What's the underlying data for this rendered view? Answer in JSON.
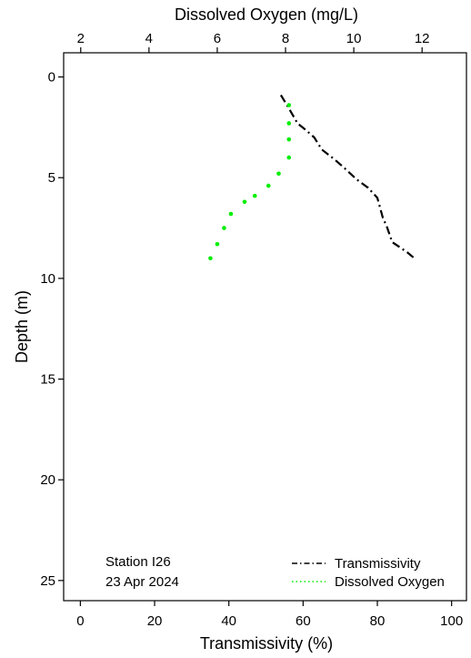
{
  "chart_data": {
    "type": "line",
    "x_bottom": {
      "label": "Transmissivity (%)",
      "range": [
        -4.5,
        104
      ],
      "ticks": [
        0,
        20,
        40,
        60,
        80,
        100
      ],
      "tick_labels": [
        "0",
        "20",
        "40",
        "60",
        "80",
        "100"
      ]
    },
    "x_top": {
      "label": "Dissolved Oxygen (mg/L)",
      "range": [
        1.5,
        13.3
      ],
      "ticks": [
        2,
        4,
        6,
        8,
        10,
        12
      ],
      "tick_labels": [
        "2",
        "4",
        "6",
        "8",
        "10",
        "12"
      ]
    },
    "y": {
      "label": "Depth (m)",
      "range": [
        26,
        -1.2
      ],
      "ticks": [
        0,
        5,
        10,
        15,
        20,
        25
      ],
      "tick_labels": [
        "0",
        "5",
        "10",
        "15",
        "20",
        "25"
      ],
      "inverted": true
    },
    "series": [
      {
        "name": "Transmissivity",
        "axis": "bottom",
        "style": "dashdot",
        "color": "#000000",
        "points": [
          [
            54.0,
            0.9
          ],
          [
            56.0,
            1.5
          ],
          [
            58.5,
            2.3
          ],
          [
            60.5,
            2.6
          ],
          [
            63.0,
            3.0
          ],
          [
            65.0,
            3.6
          ],
          [
            68.5,
            4.1
          ],
          [
            71.0,
            4.5
          ],
          [
            74.5,
            5.1
          ],
          [
            77.5,
            5.5
          ],
          [
            80.0,
            6.0
          ],
          [
            81.5,
            7.0
          ],
          [
            82.5,
            7.4
          ],
          [
            84.0,
            8.2
          ],
          [
            88.0,
            8.7
          ],
          [
            90.0,
            9.0
          ]
        ]
      },
      {
        "name": "Dissolved Oxygen",
        "axis": "top",
        "style": "dotted",
        "color": "#00ee00",
        "points": [
          [
            8.1,
            1.4
          ],
          [
            8.1,
            2.3
          ],
          [
            8.1,
            3.1
          ],
          [
            8.1,
            4.0
          ],
          [
            7.8,
            4.8
          ],
          [
            7.5,
            5.4
          ],
          [
            7.1,
            5.9
          ],
          [
            6.8,
            6.2
          ],
          [
            6.4,
            6.8
          ],
          [
            6.2,
            7.5
          ],
          [
            6.0,
            8.3
          ],
          [
            5.8,
            9.0
          ]
        ]
      }
    ],
    "annotation": {
      "lines": [
        "Station I26",
        "23 Apr 2024"
      ],
      "placement": "bottom-left"
    },
    "legend": {
      "placement": "bottom-right",
      "entries": [
        "Transmissivity",
        "Dissolved Oxygen"
      ]
    }
  }
}
